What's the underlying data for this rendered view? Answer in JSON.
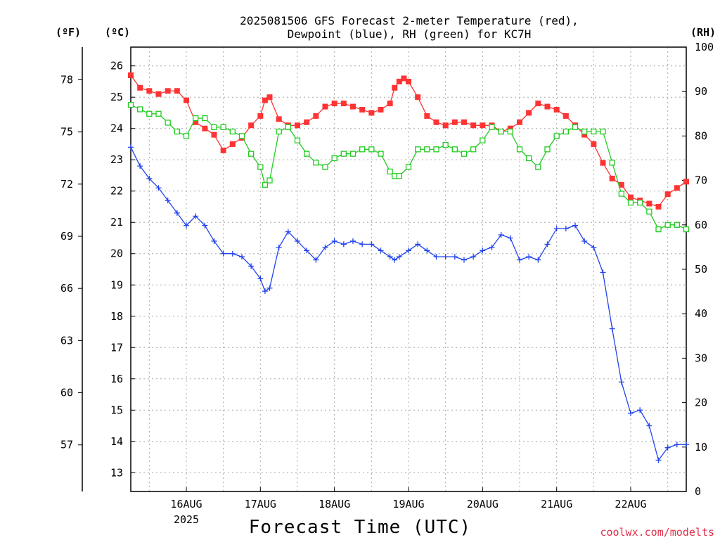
{
  "chart_data": {
    "type": "line",
    "title": "2025081506 GFS Forecast 2-meter Temperature (red), Dewpoint (blue), RH (green) for KC7H",
    "title_lines": [
      "2025081506 GFS Forecast 2-meter Temperature (red),",
      "Dewpoint (blue), RH (green) for KC7H"
    ],
    "xlabel": "Forecast Time (UTC)",
    "x_year_label": "2025",
    "units": {
      "fahrenheit": "(ºF)",
      "celsius": "(ºC)",
      "rh": "(RH)"
    },
    "credit": "coolwx.com/modelts",
    "grid": true,
    "x_ticks": [
      {
        "label": "16AUG",
        "t": 16.0
      },
      {
        "label": "17AUG",
        "t": 17.0
      },
      {
        "label": "18AUG",
        "t": 18.0
      },
      {
        "label": "19AUG",
        "t": 19.0
      },
      {
        "label": "20AUG",
        "t": 20.0
      },
      {
        "label": "21AUG",
        "t": 21.0
      },
      {
        "label": "22AUG",
        "t": 22.0
      }
    ],
    "x_range": [
      15.25,
      22.75
    ],
    "y_left_celsius": {
      "ticks": [
        13,
        14,
        15,
        16,
        17,
        18,
        19,
        20,
        21,
        22,
        23,
        24,
        25,
        26
      ],
      "range": [
        12.4,
        26.6
      ]
    },
    "y_left_fahrenheit": {
      "ticks": [
        57,
        60,
        63,
        66,
        69,
        72,
        75,
        78
      ]
    },
    "y_right_rh": {
      "ticks": [
        0,
        10,
        20,
        30,
        40,
        50,
        60,
        70,
        80,
        90,
        100
      ],
      "range": [
        0,
        100
      ]
    },
    "series": [
      {
        "name": "Temperature",
        "color": "#ff3333",
        "axis": "celsius",
        "marker": "square-filled",
        "x": [
          15.25,
          15.375,
          15.5,
          15.625,
          15.75,
          15.875,
          16.0,
          16.125,
          16.25,
          16.375,
          16.5,
          16.625,
          16.75,
          16.875,
          17.0,
          17.0625,
          17.125,
          17.25,
          17.375,
          17.5,
          17.625,
          17.75,
          17.875,
          18.0,
          18.125,
          18.25,
          18.375,
          18.5,
          18.625,
          18.75,
          18.8125,
          18.875,
          18.9375,
          19.0,
          19.125,
          19.25,
          19.375,
          19.5,
          19.625,
          19.75,
          19.875,
          20.0,
          20.125,
          20.25,
          20.375,
          20.5,
          20.625,
          20.75,
          20.875,
          21.0,
          21.125,
          21.25,
          21.375,
          21.5,
          21.625,
          21.75,
          21.875,
          22.0,
          22.125,
          22.25,
          22.375,
          22.5,
          22.625,
          22.75
        ],
        "y": [
          25.7,
          25.3,
          25.2,
          25.1,
          25.2,
          25.2,
          24.9,
          24.2,
          24.0,
          23.8,
          23.3,
          23.5,
          23.7,
          24.1,
          24.4,
          24.9,
          25.0,
          24.3,
          24.1,
          24.1,
          24.2,
          24.4,
          24.7,
          24.8,
          24.8,
          24.7,
          24.6,
          24.5,
          24.6,
          24.8,
          25.3,
          25.5,
          25.6,
          25.5,
          25.0,
          24.4,
          24.2,
          24.1,
          24.2,
          24.2,
          24.1,
          24.1,
          24.1,
          23.9,
          24.0,
          24.2,
          24.5,
          24.8,
          24.7,
          24.6,
          24.4,
          24.1,
          23.8,
          23.5,
          22.9,
          22.4,
          22.2,
          21.8,
          21.7,
          21.6,
          21.5,
          21.9,
          22.1,
          22.3
        ]
      },
      {
        "name": "Dewpoint",
        "color": "#2244ee",
        "axis": "celsius",
        "marker": "plus",
        "x": [
          15.25,
          15.375,
          15.5,
          15.625,
          15.75,
          15.875,
          16.0,
          16.125,
          16.25,
          16.375,
          16.5,
          16.625,
          16.75,
          16.875,
          17.0,
          17.0625,
          17.125,
          17.25,
          17.375,
          17.5,
          17.625,
          17.75,
          17.875,
          18.0,
          18.125,
          18.25,
          18.375,
          18.5,
          18.625,
          18.75,
          18.8125,
          18.875,
          19.0,
          19.125,
          19.25,
          19.375,
          19.5,
          19.625,
          19.75,
          19.875,
          20.0,
          20.125,
          20.25,
          20.375,
          20.5,
          20.625,
          20.75,
          20.875,
          21.0,
          21.125,
          21.25,
          21.375,
          21.5,
          21.625,
          21.75,
          21.875,
          22.0,
          22.125,
          22.25,
          22.375,
          22.5,
          22.625,
          22.75
        ],
        "y": [
          23.4,
          22.8,
          22.4,
          22.1,
          21.7,
          21.3,
          20.9,
          21.2,
          20.9,
          20.4,
          20.0,
          20.0,
          19.9,
          19.6,
          19.2,
          18.8,
          18.9,
          20.2,
          20.7,
          20.4,
          20.1,
          19.8,
          20.2,
          20.4,
          20.3,
          20.4,
          20.3,
          20.3,
          20.1,
          19.9,
          19.8,
          19.9,
          20.1,
          20.3,
          20.1,
          19.9,
          19.9,
          19.9,
          19.8,
          19.9,
          20.1,
          20.2,
          20.6,
          20.5,
          19.8,
          19.9,
          19.8,
          20.3,
          20.8,
          20.8,
          20.9,
          20.4,
          20.2,
          19.4,
          17.6,
          15.9,
          14.9,
          15.0,
          14.5,
          13.4,
          13.8,
          13.9,
          13.9
        ]
      },
      {
        "name": "RH",
        "color": "#22cc22",
        "axis": "rh",
        "marker": "square-open",
        "x": [
          15.25,
          15.375,
          15.5,
          15.625,
          15.75,
          15.875,
          16.0,
          16.125,
          16.25,
          16.375,
          16.5,
          16.625,
          16.75,
          16.875,
          17.0,
          17.0625,
          17.125,
          17.25,
          17.375,
          17.5,
          17.625,
          17.75,
          17.875,
          18.0,
          18.125,
          18.25,
          18.375,
          18.5,
          18.625,
          18.75,
          18.8125,
          18.875,
          19.0,
          19.125,
          19.25,
          19.375,
          19.5,
          19.625,
          19.75,
          19.875,
          20.0,
          20.125,
          20.25,
          20.375,
          20.5,
          20.625,
          20.75,
          20.875,
          21.0,
          21.125,
          21.25,
          21.375,
          21.5,
          21.625,
          21.75,
          21.875,
          22.0,
          22.125,
          22.25,
          22.375,
          22.5,
          22.625,
          22.75
        ],
        "y": [
          87,
          86,
          85,
          85,
          83,
          81,
          80,
          84,
          84,
          82,
          82,
          81,
          80,
          76,
          73,
          69,
          70,
          81,
          82,
          79,
          76,
          74,
          73,
          75,
          76,
          76,
          77,
          77,
          76,
          72,
          71,
          71,
          73,
          77,
          77,
          77,
          78,
          77,
          76,
          77,
          79,
          82,
          81,
          81,
          77,
          75,
          73,
          77,
          80,
          81,
          82,
          81,
          81,
          81,
          74,
          67,
          65,
          65,
          63,
          59,
          60,
          60,
          59
        ]
      }
    ]
  }
}
